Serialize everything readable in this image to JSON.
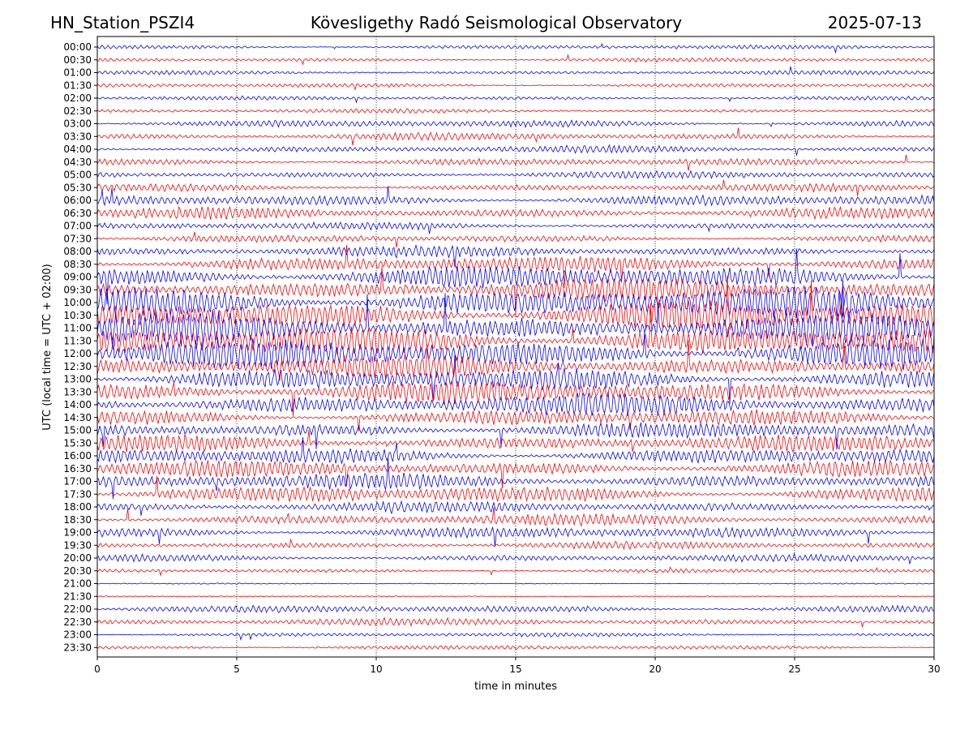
{
  "chart_data": {
    "type": "line",
    "title_left": "HN_Station_PSZI4",
    "title_center": "Kövesligethy Radó Seismological Observatory",
    "title_right": "2025-07-13",
    "xlabel": "time in minutes",
    "ylabel": "UTC (local time = UTC + 02:00)",
    "xlim": [
      0,
      30
    ],
    "x_ticks": [
      "0",
      "5",
      "10",
      "15",
      "20",
      "25",
      "30"
    ],
    "x_tick_values": [
      0,
      5,
      10,
      15,
      20,
      25,
      30
    ],
    "grid": "vertical dotted at x ticks",
    "trace_colors": [
      "#0000ff",
      "#ff0000"
    ],
    "rows": [
      "00:00",
      "00:30",
      "01:00",
      "01:30",
      "02:00",
      "02:30",
      "03:00",
      "03:30",
      "04:00",
      "04:30",
      "05:00",
      "05:30",
      "06:00",
      "06:30",
      "07:00",
      "07:30",
      "08:00",
      "08:30",
      "09:00",
      "09:30",
      "10:00",
      "10:30",
      "11:00",
      "11:30",
      "12:00",
      "12:30",
      "13:00",
      "13:30",
      "14:00",
      "14:30",
      "15:00",
      "15:30",
      "16:00",
      "16:30",
      "17:00",
      "17:30",
      "18:00",
      "18:30",
      "19:00",
      "19:30",
      "20:00",
      "20:30",
      "21:00",
      "21:30",
      "22:00",
      "22:30",
      "23:00",
      "23:30"
    ],
    "row_activity": [
      1,
      1,
      1,
      1,
      1,
      1,
      2,
      2,
      2,
      2,
      2,
      2,
      3,
      3,
      2,
      2,
      3,
      4,
      5,
      5,
      6,
      6,
      6,
      6,
      6,
      5,
      5,
      5,
      5,
      4,
      4,
      4,
      4,
      4,
      4,
      4,
      3,
      3,
      3,
      2,
      2,
      1,
      0,
      0,
      2,
      2,
      1,
      1
    ]
  }
}
